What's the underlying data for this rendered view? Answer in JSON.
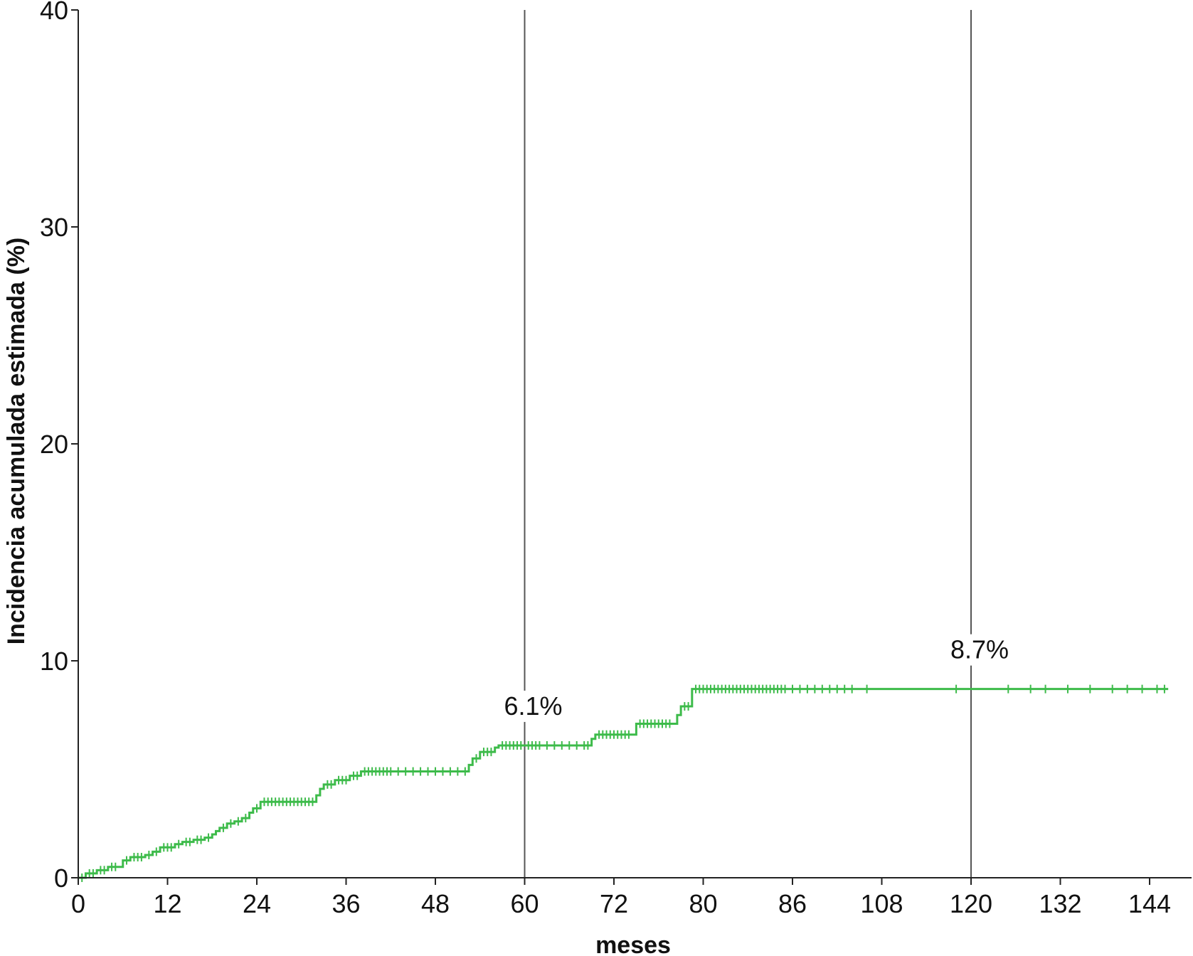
{
  "chart_data": {
    "type": "line",
    "title": "",
    "xlabel": "meses",
    "ylabel": "Incidencia acumulada estimada (%)",
    "ylim": [
      0,
      40
    ],
    "yticks": [
      0,
      10,
      20,
      30,
      40
    ],
    "xtick_labels": [
      "0",
      "12",
      "24",
      "36",
      "48",
      "60",
      "72",
      "80",
      "86",
      "108",
      "120",
      "132",
      "144"
    ],
    "grid": false,
    "legend": "none",
    "colors": {
      "curve": "#3dbb4a",
      "reference_lines": "#555555",
      "axis": "#222222"
    },
    "reference_lines_at_month": [
      60,
      120
    ],
    "annotations": [
      {
        "text": "6.1%",
        "at_month": 60,
        "value": 6.1
      },
      {
        "text": "8.7%",
        "at_month": 120,
        "value": 8.7
      }
    ],
    "series": [
      {
        "steps": [
          {
            "x": 0,
            "y": 0.0
          },
          {
            "x": 1,
            "y": 0.2
          },
          {
            "x": 2.5,
            "y": 0.35
          },
          {
            "x": 4,
            "y": 0.5
          },
          {
            "x": 6,
            "y": 0.8
          },
          {
            "x": 7,
            "y": 0.95
          },
          {
            "x": 9,
            "y": 1.05
          },
          {
            "x": 10,
            "y": 1.2
          },
          {
            "x": 11,
            "y": 1.4
          },
          {
            "x": 13,
            "y": 1.55
          },
          {
            "x": 14,
            "y": 1.65
          },
          {
            "x": 15.5,
            "y": 1.75
          },
          {
            "x": 17,
            "y": 1.85
          },
          {
            "x": 18,
            "y": 2.0
          },
          {
            "x": 18.5,
            "y": 2.15
          },
          {
            "x": 19,
            "y": 2.3
          },
          {
            "x": 20,
            "y": 2.5
          },
          {
            "x": 21,
            "y": 2.6
          },
          {
            "x": 22,
            "y": 2.75
          },
          {
            "x": 23,
            "y": 3.0
          },
          {
            "x": 23.5,
            "y": 3.2
          },
          {
            "x": 24.5,
            "y": 3.5
          },
          {
            "x": 32,
            "y": 3.8
          },
          {
            "x": 32.5,
            "y": 4.1
          },
          {
            "x": 33,
            "y": 4.3
          },
          {
            "x": 34.5,
            "y": 4.5
          },
          {
            "x": 36.5,
            "y": 4.7
          },
          {
            "x": 38,
            "y": 4.9
          },
          {
            "x": 52.5,
            "y": 5.2
          },
          {
            "x": 53,
            "y": 5.5
          },
          {
            "x": 54,
            "y": 5.8
          },
          {
            "x": 56,
            "y": 6.0
          },
          {
            "x": 56.5,
            "y": 6.1
          },
          {
            "x": 69,
            "y": 6.4
          },
          {
            "x": 69.5,
            "y": 6.6
          },
          {
            "x": 75,
            "y": 7.1
          },
          {
            "x": 80.5,
            "y": 7.5
          },
          {
            "x": 81,
            "y": 7.9
          },
          {
            "x": 82.5,
            "y": 8.7
          }
        ],
        "x_end": 146.5,
        "censor_marks": [
          0.5,
          1.5,
          2,
          3,
          3.5,
          4.5,
          5,
          6.5,
          7.5,
          8,
          8.5,
          9.5,
          10.5,
          11.5,
          12,
          12.5,
          13.5,
          14.5,
          15,
          16,
          16.5,
          17.5,
          19.5,
          20.5,
          21.5,
          22.5,
          24,
          25,
          25.5,
          26,
          26.5,
          27,
          27.5,
          28,
          28.5,
          29,
          29.5,
          30,
          30.5,
          31,
          31.5,
          33.5,
          34,
          35,
          35.5,
          36,
          37,
          37.5,
          38.5,
          39,
          39.5,
          40,
          40.5,
          41,
          41.5,
          42,
          43,
          44,
          45,
          46,
          47,
          48,
          49,
          50,
          51,
          52,
          53.5,
          54.5,
          55,
          55.5,
          57,
          57.5,
          58,
          58.5,
          59,
          59.5,
          60.5,
          61,
          61.5,
          62,
          63,
          64,
          65,
          66,
          67,
          68,
          68.5,
          70,
          70.5,
          71,
          71.5,
          72,
          72.5,
          73,
          73.5,
          74,
          75.5,
          76,
          76.5,
          77,
          77.5,
          78,
          78.5,
          79,
          79.5,
          81.5,
          82,
          83,
          83.5,
          84,
          84.5,
          85,
          85.5,
          86,
          86.5,
          87,
          87.5,
          88,
          88.5,
          89,
          89.5,
          90,
          90.5,
          91,
          91.5,
          92,
          92.5,
          93,
          93.5,
          94,
          94.5,
          95,
          96,
          97,
          98,
          99,
          100,
          101,
          102,
          103,
          104,
          106,
          118,
          125,
          128,
          130,
          133,
          136,
          139,
          141,
          143,
          145,
          146
        ]
      }
    ]
  }
}
